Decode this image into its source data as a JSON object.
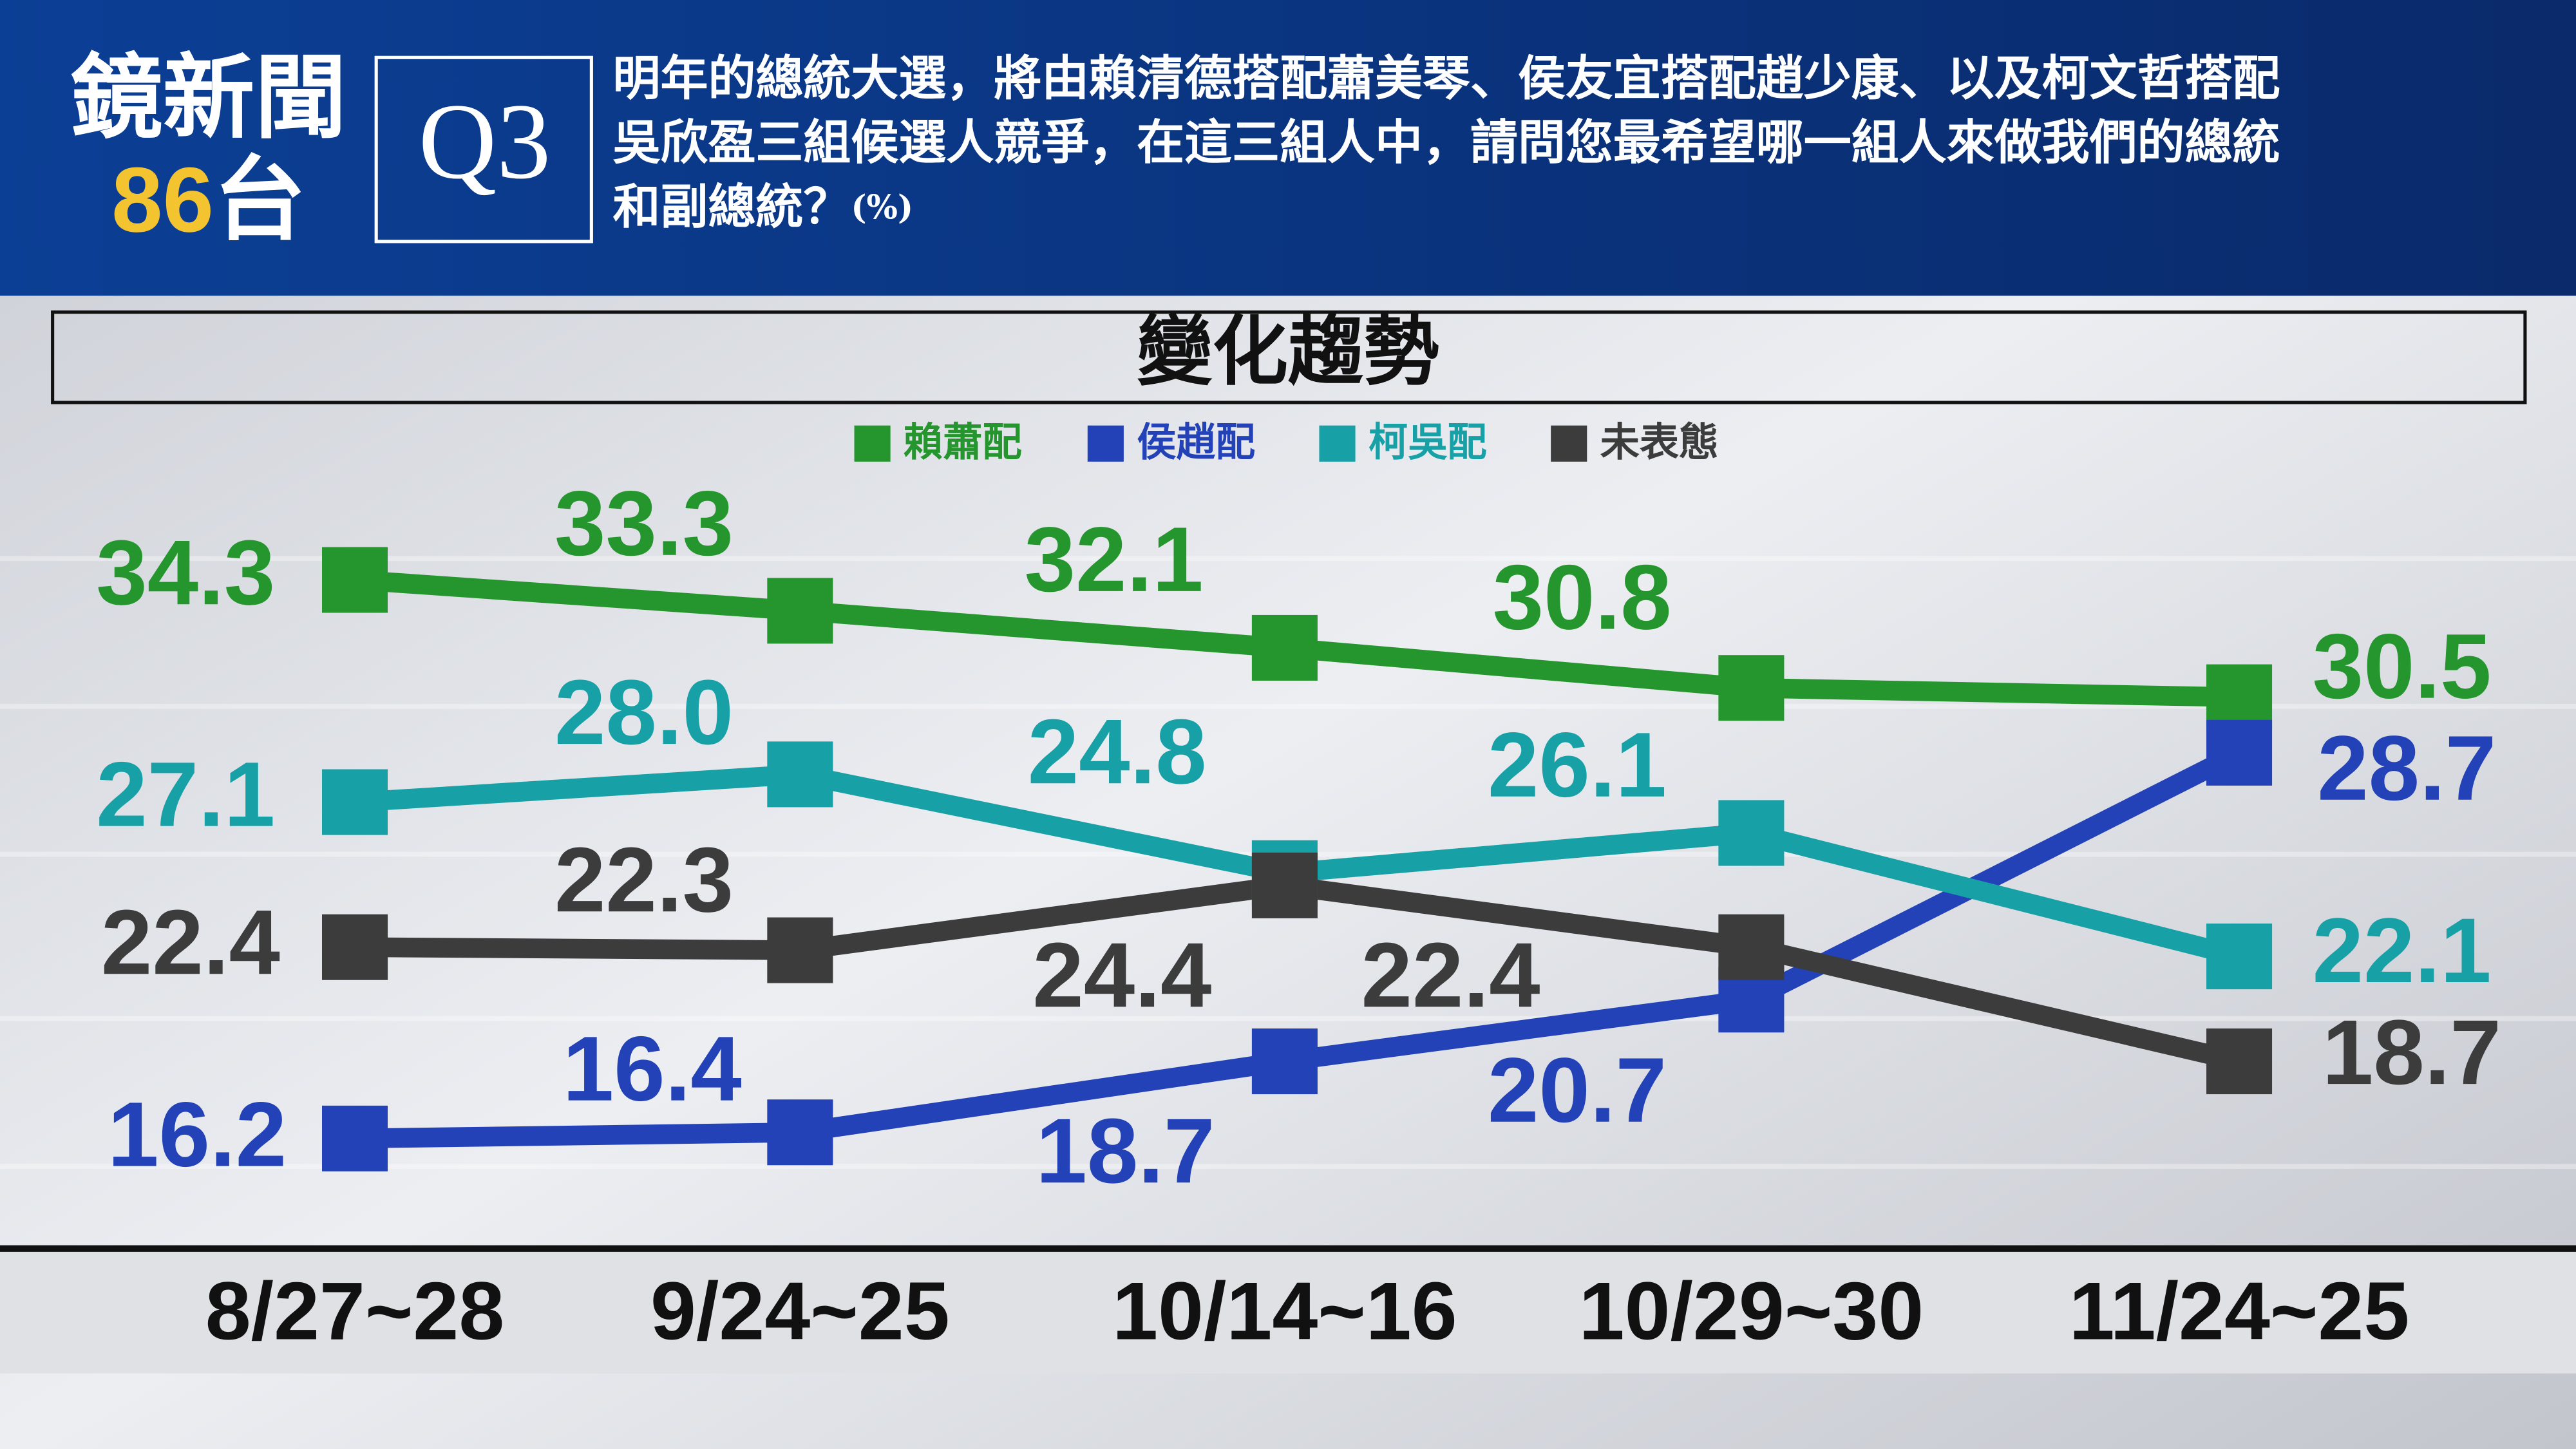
{
  "header": {
    "brand": "鏡新聞",
    "channel_number": "86",
    "channel_suffix": "台",
    "question_id": "Q3",
    "question_lines": [
      "明年的總統大選，將由賴清德搭配蕭美琴、侯友宜搭配趙少康、以及柯文哲搭配",
      "吳欣盈三組候選人競爭，在這三組人中，請問您最希望哪一組人來做我們的總統",
      "和副總統？"
    ],
    "unit": "(%)"
  },
  "chart_data": {
    "type": "line",
    "title": "變化趨勢",
    "categories": [
      "8/27~28",
      "9/24~25",
      "10/14~16",
      "10/29~30",
      "11/24~25"
    ],
    "legend": "top",
    "series": [
      {
        "name": "賴蕭配",
        "color": "#25962d",
        "values": [
          34.3,
          33.3,
          32.1,
          30.8,
          30.5
        ]
      },
      {
        "name": "侯趙配",
        "color": "#2342b8",
        "values": [
          16.2,
          16.4,
          18.7,
          20.7,
          28.7
        ]
      },
      {
        "name": "柯吳配",
        "color": "#17a0a6",
        "values": [
          27.1,
          28.0,
          24.8,
          26.1,
          22.1
        ],
        "value_labels": [
          "27.1",
          "28.0",
          "24.8",
          "26.1",
          "22.1"
        ]
      },
      {
        "name": "未表態",
        "color": "#3c3c3c",
        "values": [
          22.4,
          22.3,
          24.4,
          22.4,
          18.7
        ]
      }
    ]
  }
}
